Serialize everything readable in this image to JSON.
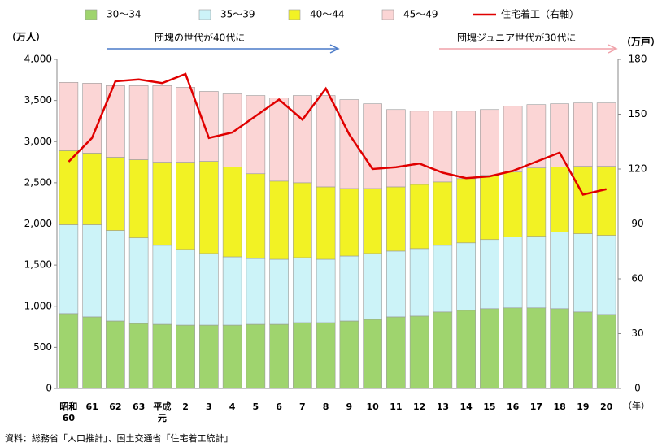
{
  "chart_data": {
    "type": "bar",
    "stacked": true,
    "categories": [
      "昭和\n60",
      "61",
      "62",
      "63",
      "平成\n元",
      "2",
      "3",
      "4",
      "5",
      "6",
      "7",
      "8",
      "9",
      "10",
      "11",
      "12",
      "13",
      "14",
      "15",
      "16",
      "17",
      "18",
      "19",
      "20"
    ],
    "series": [
      {
        "name": "30～34",
        "color": "#9fd46e",
        "values": [
          910,
          870,
          820,
          790,
          780,
          770,
          770,
          770,
          780,
          780,
          800,
          800,
          820,
          840,
          870,
          880,
          930,
          950,
          970,
          980,
          980,
          970,
          930,
          900
        ]
      },
      {
        "name": "35～39",
        "color": "#ccf3f8",
        "values": [
          1080,
          1120,
          1100,
          1040,
          960,
          920,
          870,
          830,
          800,
          790,
          790,
          770,
          790,
          800,
          800,
          820,
          810,
          820,
          840,
          860,
          870,
          930,
          950,
          960
        ]
      },
      {
        "name": "40～44",
        "color": "#f2f224",
        "values": [
          900,
          870,
          890,
          950,
          1010,
          1060,
          1120,
          1090,
          1030,
          950,
          910,
          880,
          820,
          790,
          780,
          780,
          770,
          780,
          780,
          790,
          830,
          790,
          820,
          840
        ]
      },
      {
        "name": "45～49",
        "color": "#fbd5d5",
        "values": [
          830,
          850,
          870,
          900,
          930,
          910,
          850,
          890,
          950,
          1010,
          1060,
          1110,
          1080,
          1030,
          940,
          890,
          860,
          820,
          800,
          800,
          770,
          770,
          770,
          770
        ]
      },
      {
        "name": "住宅着工（右軸）",
        "color": "#e00000",
        "type": "line",
        "axis": "y2",
        "values": [
          124,
          137,
          168,
          169,
          167,
          172,
          137,
          140,
          149,
          158,
          147,
          164,
          139,
          120,
          121,
          123,
          118,
          115,
          116,
          119,
          124,
          129,
          106,
          109
        ]
      }
    ],
    "ylim": [
      0,
      4000
    ],
    "yticks": [
      0,
      500,
      {
        "value": 1000,
        "label": "1,000"
      },
      {
        "value": 1500,
        "label": "1,500"
      },
      {
        "value": 2000,
        "label": "2,000"
      },
      {
        "value": 2500,
        "label": "2,500"
      },
      {
        "value": 3000,
        "label": "3,000"
      },
      {
        "value": 3500,
        "label": "3,500"
      },
      {
        "value": 4000,
        "label": "4,000"
      }
    ],
    "y2lim": [
      0,
      180
    ],
    "y2ticks": [
      0,
      30,
      60,
      90,
      120,
      150,
      180
    ],
    "y_label": "（万人）",
    "y2_label": "（万戸）",
    "x_label": "（年）",
    "annotations": [
      "団塊の世代が40代に",
      "団塊ジュニア世代が30代に"
    ],
    "source": "資料：総務省「人口推計」、国土交通省「住宅着工統計」",
    "legend": "top"
  }
}
